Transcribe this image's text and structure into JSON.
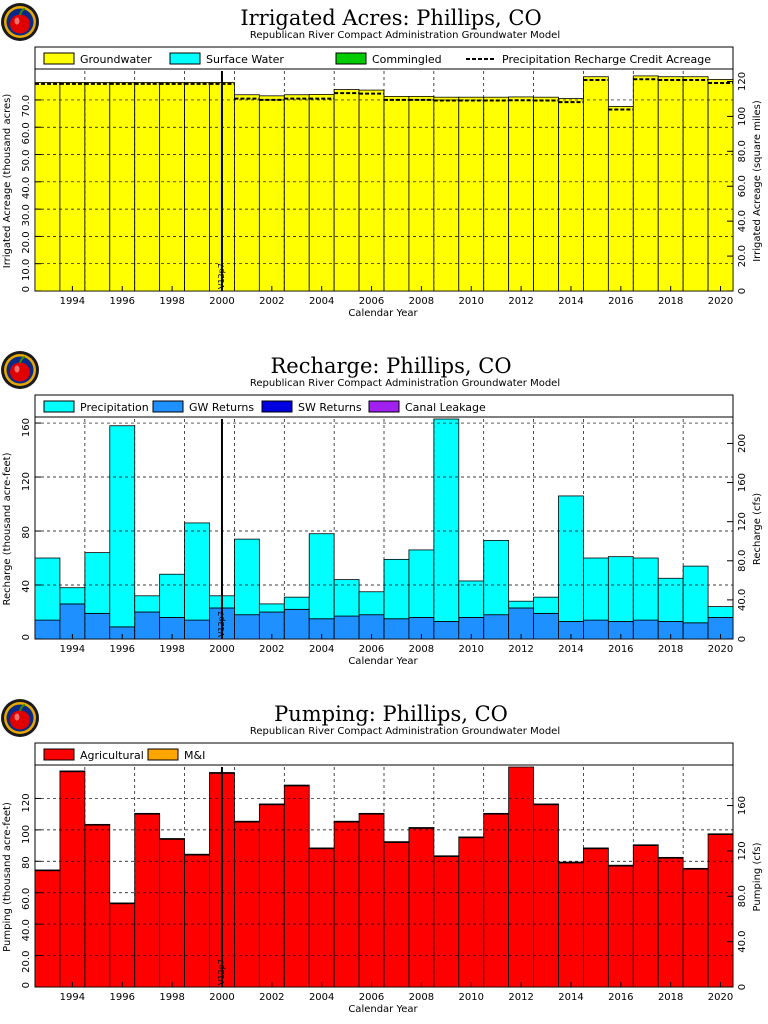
{
  "colors": {
    "groundwater": "#FFFF00",
    "surface_water": "#00FFFF",
    "commingled": "#00CC00",
    "gw_returns": "#1E90FF",
    "sw_returns": "#0000E0",
    "canal_leakage": "#A020F0",
    "agricultural": "#FF0000",
    "mi": "#FFA500",
    "logo_ring": "#E8A800",
    "logo_apple": "#E00000"
  },
  "logo_icon": "apple-logo-icon",
  "chart_data": [
    {
      "id": "irrigated",
      "type": "bar",
      "title": "Irrigated Acres: Phillips, CO",
      "subtitle": "Republican River Compact Administration Groundwater Model",
      "xlabel": "Calendar Year",
      "ylabel_left": "Irrigated Acreage (thousand acres)",
      "ylabel_right": "Irrigated Acreage (square miles)",
      "marker_label": "V12p7",
      "marker_year": 2000.5,
      "ylim": [
        0,
        80.6
      ],
      "ylim_right": [
        0,
        126
      ],
      "yticks": [
        0,
        10,
        20,
        30,
        40,
        50,
        60,
        70
      ],
      "ytick_labels": [
        "0",
        "10.0",
        "20.0",
        "30.0",
        "40.0",
        "50.0",
        "60.0",
        "70.0"
      ],
      "yticks_right": [
        0,
        20,
        40,
        60,
        80,
        100,
        120
      ],
      "ytick_labels_right": [
        "0",
        "20.0",
        "40.0",
        "60.0",
        "80.0",
        "100",
        "120"
      ],
      "x_start": 1993,
      "xticks": [
        1994,
        1996,
        1998,
        2000,
        2002,
        2004,
        2006,
        2008,
        2010,
        2012,
        2014,
        2016,
        2018,
        2020
      ],
      "legend_placement": "top",
      "legend": [
        {
          "name": "Groundwater",
          "kind": "box",
          "color_key": "groundwater"
        },
        {
          "name": "Surface Water",
          "kind": "box",
          "color_key": "surface_water"
        },
        {
          "name": "Commingled",
          "kind": "box",
          "color_key": "commingled"
        },
        {
          "name": "Precipitation Recharge Credit Acreage",
          "kind": "dash"
        }
      ],
      "categories": [
        1993,
        1994,
        1995,
        1996,
        1997,
        1998,
        1999,
        2000,
        2001,
        2002,
        2003,
        2004,
        2005,
        2006,
        2007,
        2008,
        2009,
        2010,
        2011,
        2012,
        2013,
        2014,
        2015,
        2016,
        2017,
        2018,
        2019,
        2020
      ],
      "series": [
        {
          "name": "Groundwater",
          "color_key": "groundwater",
          "values": [
            76.4,
            76.4,
            76.4,
            76.4,
            76.4,
            76.4,
            76.4,
            76.4,
            71.9,
            71.5,
            71.9,
            72.0,
            73.8,
            73.6,
            71.3,
            71.3,
            71.0,
            71.0,
            71.0,
            71.1,
            71.0,
            70.5,
            78.5,
            67.6,
            78.8,
            78.5,
            78.5,
            77.5
          ]
        }
      ],
      "dashed_line": {
        "name": "Precipitation Recharge Credit Acreage",
        "values": [
          75.9,
          75.9,
          75.9,
          75.9,
          75.9,
          75.9,
          75.9,
          75.9,
          70.5,
          70.0,
          70.5,
          70.5,
          72.5,
          72.3,
          70.0,
          70.0,
          69.8,
          69.8,
          69.8,
          69.9,
          69.8,
          69.2,
          77.3,
          66.5,
          77.6,
          77.3,
          77.3,
          76.2
        ]
      }
    },
    {
      "id": "recharge",
      "type": "bar",
      "title": "Recharge: Phillips, CO",
      "subtitle": "Republican River Compact Administration Groundwater Model",
      "xlabel": "Calendar Year",
      "ylabel_left": "Recharge (thousand acre-feet)",
      "ylabel_right": "Recharge (cfs)",
      "marker_label": "V12p7",
      "marker_year": 2000.5,
      "ylim": [
        0,
        163
      ],
      "ylim_right": [
        0,
        225
      ],
      "yticks": [
        0,
        40,
        80,
        120,
        160
      ],
      "ytick_labels": [
        "0",
        "40",
        "80",
        "120",
        "160"
      ],
      "yticks_right": [
        0,
        40,
        80,
        120,
        160,
        200
      ],
      "ytick_labels_right": [
        "0",
        "40.0",
        "80.0",
        "120",
        "160",
        "200"
      ],
      "x_start": 1993,
      "xticks": [
        1994,
        1996,
        1998,
        2000,
        2002,
        2004,
        2006,
        2008,
        2010,
        2012,
        2014,
        2016,
        2018,
        2020
      ],
      "legend_placement": "top",
      "legend": [
        {
          "name": "Precipitation",
          "kind": "box",
          "color_key": "surface_water"
        },
        {
          "name": "GW Returns",
          "kind": "box",
          "color_key": "gw_returns"
        },
        {
          "name": "SW Returns",
          "kind": "box",
          "color_key": "sw_returns"
        },
        {
          "name": "Canal Leakage",
          "kind": "box",
          "color_key": "canal_leakage"
        }
      ],
      "categories": [
        1993,
        1994,
        1995,
        1996,
        1997,
        1998,
        1999,
        2000,
        2001,
        2002,
        2003,
        2004,
        2005,
        2006,
        2007,
        2008,
        2009,
        2010,
        2011,
        2012,
        2013,
        2014,
        2015,
        2016,
        2017,
        2018,
        2019,
        2020
      ],
      "series": [
        {
          "name": "GW Returns",
          "color_key": "gw_returns",
          "values": [
            14,
            26,
            19,
            9,
            20,
            16,
            14,
            23,
            18,
            20,
            22,
            15,
            17,
            18,
            15,
            16,
            13,
            16,
            18,
            23,
            19,
            13,
            14,
            13,
            14,
            13,
            12,
            16
          ]
        },
        {
          "name": "Precipitation",
          "color_key": "surface_water",
          "values": [
            46,
            12,
            45,
            149,
            12,
            32,
            72,
            9,
            56,
            6,
            9,
            63,
            27,
            17,
            44,
            50,
            150,
            27,
            55,
            5,
            12,
            93,
            46,
            48,
            46,
            32,
            42,
            8
          ]
        }
      ]
    },
    {
      "id": "pumping",
      "type": "bar",
      "title": "Pumping: Phillips, CO",
      "subtitle": "Republican River Compact Administration Groundwater Model",
      "xlabel": "Calendar Year",
      "ylabel_left": "Pumping (thousand acre-feet)",
      "ylabel_right": "Pumping (cfs)",
      "marker_label": "V12p7",
      "marker_year": 2000.5,
      "ylim": [
        0,
        140
      ],
      "ylim_right": [
        0,
        194
      ],
      "yticks": [
        0,
        20,
        40,
        60,
        80,
        100,
        120
      ],
      "ytick_labels": [
        "0",
        "20.0",
        "40.0",
        "60.0",
        "80",
        "100",
        "120"
      ],
      "yticks_right": [
        0,
        40,
        80,
        120,
        160
      ],
      "ytick_labels_right": [
        "0",
        "40.0",
        "80.0",
        "120",
        "160"
      ],
      "x_start": 1993,
      "xticks": [
        1994,
        1996,
        1998,
        2000,
        2002,
        2004,
        2006,
        2008,
        2010,
        2012,
        2014,
        2016,
        2018,
        2020
      ],
      "legend_placement": "top",
      "legend": [
        {
          "name": "Agricultural",
          "kind": "box",
          "color_key": "agricultural"
        },
        {
          "name": "M&I",
          "kind": "box",
          "color_key": "mi"
        }
      ],
      "categories": [
        1993,
        1994,
        1995,
        1996,
        1997,
        1998,
        1999,
        2000,
        2001,
        2002,
        2003,
        2004,
        2005,
        2006,
        2007,
        2008,
        2009,
        2010,
        2011,
        2012,
        2013,
        2014,
        2015,
        2016,
        2017,
        2018,
        2019,
        2020
      ],
      "series": [
        {
          "name": "Agricultural",
          "color_key": "agricultural",
          "values": [
            74,
            137,
            103,
            53,
            110,
            94,
            84,
            136,
            105,
            116,
            128,
            88,
            105,
            110,
            92,
            101,
            83,
            95,
            110,
            140,
            116,
            79,
            88,
            77,
            90,
            82,
            75,
            97
          ]
        },
        {
          "name": "M&I",
          "color_key": "mi",
          "values": [
            0.5,
            0.5,
            0.5,
            0.5,
            0.5,
            0.5,
            0.5,
            0.5,
            0.5,
            0.5,
            0.5,
            0.5,
            0.5,
            0.5,
            0.5,
            0.5,
            0.5,
            0.5,
            0.5,
            0.5,
            0.5,
            0.5,
            0.5,
            0.5,
            0.5,
            0.5,
            0.5,
            0.5
          ]
        }
      ]
    }
  ]
}
